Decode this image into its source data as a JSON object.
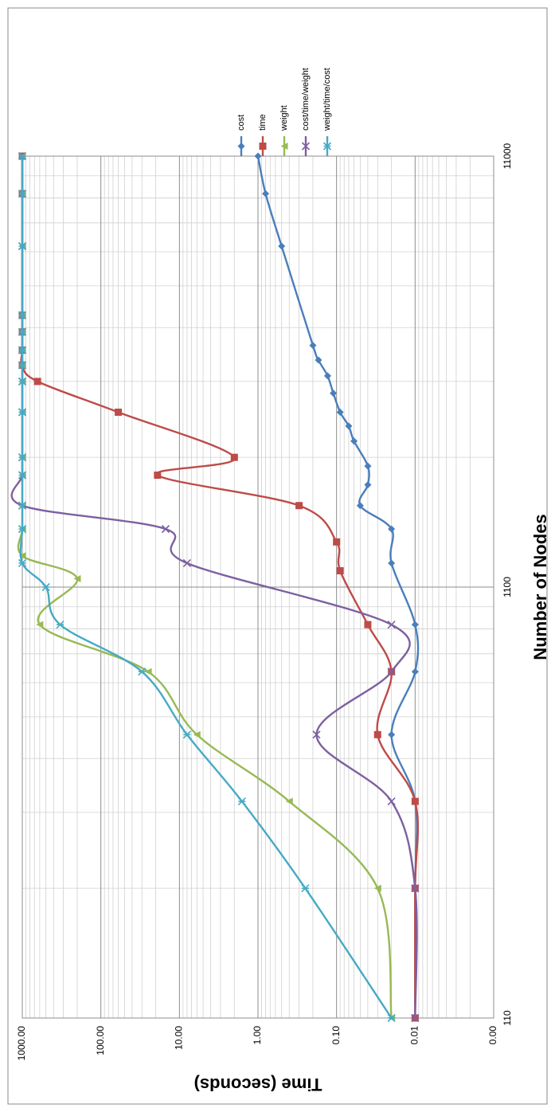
{
  "chart_data": {
    "type": "line",
    "x_label": "Number of Nodes",
    "y_label": "Time (seconds)",
    "xlim": [
      110,
      11000
    ],
    "xticks": [
      110,
      1100,
      11000
    ],
    "x_log": true,
    "ylim": [
      0.001,
      1000
    ],
    "yticks": [
      {
        "value": 0.001,
        "label": "0.00"
      },
      {
        "value": 0.01,
        "label": "0.01"
      },
      {
        "value": 0.1,
        "label": "0.10"
      },
      {
        "value": 1,
        "label": "1.00"
      },
      {
        "value": 10,
        "label": "10.00"
      },
      {
        "value": 100,
        "label": "100.00"
      },
      {
        "value": 1000,
        "label": "1000.00"
      }
    ],
    "y_log": true,
    "grid": true,
    "minor_grid": true,
    "legend": "right",
    "series": [
      {
        "name": "cost",
        "color": "#4a7ebb",
        "x": [
          110,
          220,
          350,
          500,
          700,
          900,
          1250,
          1500,
          1700,
          1900,
          2100,
          2400,
          2600,
          2800,
          3100,
          3400,
          3700,
          4000,
          6800,
          9000,
          11000
        ],
        "values": [
          0.01,
          0.01,
          0.01,
          0.02,
          0.01,
          0.01,
          0.02,
          0.02,
          0.05,
          0.04,
          0.04,
          0.06,
          0.07,
          0.09,
          0.11,
          0.13,
          0.17,
          0.2,
          0.5,
          0.8,
          1.0
        ]
      },
      {
        "name": "time",
        "color": "#be4b48",
        "x": [
          110,
          220,
          350,
          500,
          700,
          900,
          1200,
          1400,
          1700,
          2000,
          2200,
          2800,
          3300,
          3600,
          3900,
          4300,
          4700,
          9000,
          11000
        ],
        "values": [
          0.01,
          0.01,
          0.01,
          0.03,
          0.02,
          0.04,
          0.09,
          0.1,
          0.3,
          19,
          2,
          60,
          640,
          1000,
          1000,
          1000,
          1000,
          1000,
          1000
        ]
      },
      {
        "name": "weight",
        "color": "#98b954",
        "x": [
          110,
          220,
          350,
          500,
          700,
          900,
          1150,
          1300,
          1500,
          1700,
          2000,
          2200,
          2800,
          3300,
          3600,
          3900,
          4300,
          4700,
          6800,
          9000,
          11000
        ],
        "values": [
          0.02,
          0.03,
          0.4,
          6,
          25,
          600,
          200,
          1000,
          1000,
          1000,
          1000,
          1000,
          1000,
          1000,
          1000,
          1000,
          1000,
          1000,
          1000,
          1000,
          1000
        ]
      },
      {
        "name": "cost/time/weight",
        "color": "#7d60a0",
        "x": [
          110,
          220,
          350,
          500,
          700,
          900,
          1250,
          1500,
          1700,
          2000,
          2200,
          2800,
          3300,
          3600,
          3900,
          4300,
          4700,
          6800,
          9000,
          11000
        ],
        "values": [
          0.01,
          0.01,
          0.02,
          0.18,
          0.02,
          0.02,
          8,
          15,
          1000,
          1000,
          1000,
          1000,
          1000,
          1000,
          1000,
          1000,
          1000,
          1000,
          1000,
          1000
        ]
      },
      {
        "name": "weight/time/cost",
        "color": "#46aac5",
        "x": [
          110,
          220,
          350,
          500,
          700,
          900,
          1100,
          1250,
          1500,
          1700,
          2000,
          2200,
          2800,
          3300,
          3600,
          3900,
          4300,
          4700,
          6800,
          9000,
          11000
        ],
        "values": [
          0.02,
          0.25,
          1.6,
          8,
          30,
          330,
          500,
          1000,
          1000,
          1000,
          1000,
          1000,
          1000,
          1000,
          1000,
          1000,
          1000,
          1000,
          1000,
          1000,
          1000
        ]
      }
    ]
  }
}
